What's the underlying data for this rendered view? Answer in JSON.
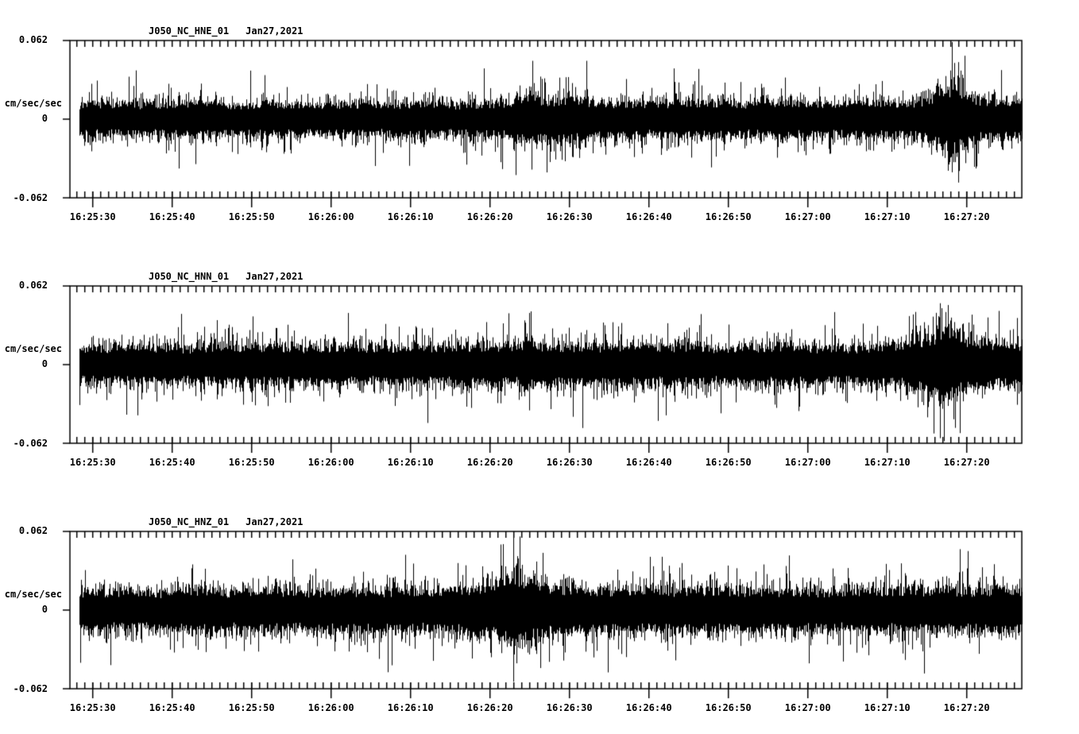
{
  "page": {
    "background": "#ffffff",
    "ink": "#000000"
  },
  "chart_data": [
    {
      "type": "line",
      "subtype": "seismogram",
      "title": "J050_NC_HNE_01",
      "date_label": "Jan27,2021",
      "ylabel": "cm/sec/sec",
      "ylim": [
        -0.062,
        0.062
      ],
      "ytick_labels": [
        "0.062",
        "0",
        "-0.062"
      ],
      "xtick_labels": [
        "16:25:30",
        "16:25:40",
        "16:25:50",
        "16:26:00",
        "16:26:10",
        "16:26:20",
        "16:26:30",
        "16:26:40",
        "16:26:50",
        "16:27:00",
        "16:27:10",
        "16:27:20"
      ],
      "x_window_start": "16:25:27",
      "x_window_end": "16:27:27",
      "minor_tick_sec": 1,
      "major_tick_sec": 10,
      "grid": false,
      "legend": "none",
      "seed": 7,
      "envelope_t_sec": [
        0,
        5,
        10,
        15,
        20,
        25,
        30,
        35,
        40,
        45,
        48,
        52,
        55,
        57,
        58,
        59,
        60,
        62,
        63,
        64,
        66,
        68,
        70,
        73,
        76,
        79,
        82,
        85,
        88,
        91,
        94,
        97,
        100,
        103,
        106,
        108,
        110,
        111,
        112,
        113,
        115,
        117,
        120
      ],
      "envelope_amp": [
        0.019,
        0.02,
        0.019,
        0.021,
        0.019,
        0.02,
        0.019,
        0.02,
        0.019,
        0.021,
        0.019,
        0.02,
        0.021,
        0.027,
        0.031,
        0.027,
        0.023,
        0.026,
        0.03,
        0.026,
        0.022,
        0.021,
        0.022,
        0.02,
        0.022,
        0.021,
        0.022,
        0.02,
        0.021,
        0.022,
        0.02,
        0.021,
        0.022,
        0.021,
        0.022,
        0.026,
        0.036,
        0.042,
        0.038,
        0.03,
        0.024,
        0.022,
        0.022
      ],
      "spikes": [
        {
          "t": 52.1,
          "amp": 0.04
        },
        {
          "t": 58.2,
          "amp": 0.046
        },
        {
          "t": 60.0,
          "amp": -0.042
        },
        {
          "t": 65.0,
          "amp": 0.046
        },
        {
          "t": 76.0,
          "amp": 0.04
        },
        {
          "t": 111.0,
          "amp": 0.057
        },
        {
          "t": 111.8,
          "amp": -0.05
        },
        {
          "t": 112.6,
          "amp": 0.05
        }
      ]
    },
    {
      "type": "line",
      "subtype": "seismogram",
      "title": "J050_NC_HNN_01",
      "date_label": "Jan27,2021",
      "ylabel": "cm/sec/sec",
      "ylim": [
        -0.062,
        0.062
      ],
      "ytick_labels": [
        "0.062",
        "0",
        "-0.062"
      ],
      "xtick_labels": [
        "16:25:30",
        "16:25:40",
        "16:25:50",
        "16:26:00",
        "16:26:10",
        "16:26:20",
        "16:26:30",
        "16:26:40",
        "16:26:50",
        "16:27:00",
        "16:27:10",
        "16:27:20"
      ],
      "x_window_start": "16:25:27",
      "x_window_end": "16:27:27",
      "minor_tick_sec": 1,
      "major_tick_sec": 10,
      "grid": false,
      "legend": "none",
      "seed": 13,
      "envelope_t_sec": [
        0,
        5,
        10,
        14,
        18,
        22,
        26,
        30,
        34,
        38,
        42,
        46,
        50,
        54,
        58,
        62,
        66,
        70,
        74,
        78,
        82,
        86,
        90,
        94,
        98,
        102,
        105,
        107,
        109,
        110,
        111,
        112,
        114,
        116,
        118,
        120
      ],
      "envelope_amp": [
        0.021,
        0.022,
        0.023,
        0.021,
        0.023,
        0.022,
        0.024,
        0.022,
        0.023,
        0.022,
        0.023,
        0.022,
        0.024,
        0.023,
        0.025,
        0.024,
        0.023,
        0.024,
        0.023,
        0.024,
        0.022,
        0.023,
        0.024,
        0.022,
        0.022,
        0.023,
        0.025,
        0.032,
        0.04,
        0.043,
        0.04,
        0.034,
        0.028,
        0.026,
        0.027,
        0.026
      ],
      "spikes": [
        {
          "t": 8.5,
          "amp": -0.04
        },
        {
          "t": 23.0,
          "amp": 0.038
        },
        {
          "t": 45.0,
          "amp": -0.046
        },
        {
          "t": 58.0,
          "amp": 0.042
        },
        {
          "t": 64.5,
          "amp": -0.05
        },
        {
          "t": 75.0,
          "amp": -0.04
        },
        {
          "t": 109.5,
          "amp": -0.058
        },
        {
          "t": 110.5,
          "amp": 0.047
        },
        {
          "t": 112.0,
          "amp": -0.054
        }
      ]
    },
    {
      "type": "line",
      "subtype": "seismogram",
      "title": "J050_NC_HNZ_01",
      "date_label": "Jan27,2021",
      "ylabel": "cm/sec/sec",
      "ylim": [
        -0.062,
        0.062
      ],
      "ytick_labels": [
        "0.062",
        "0",
        "-0.062"
      ],
      "xtick_labels": [
        "16:25:30",
        "16:25:40",
        "16:25:50",
        "16:26:00",
        "16:26:10",
        "16:26:20",
        "16:26:30",
        "16:26:40",
        "16:26:50",
        "16:27:00",
        "16:27:10",
        "16:27:20"
      ],
      "x_window_start": "16:25:27",
      "x_window_end": "16:27:27",
      "minor_tick_sec": 1,
      "major_tick_sec": 10,
      "grid": false,
      "legend": "none",
      "seed": 29,
      "envelope_t_sec": [
        0,
        5,
        10,
        15,
        20,
        25,
        30,
        35,
        40,
        44,
        48,
        52,
        54,
        55,
        56,
        57,
        58,
        59,
        61,
        63,
        66,
        70,
        74,
        78,
        82,
        86,
        90,
        94,
        98,
        102,
        106,
        110,
        114,
        117,
        120
      ],
      "envelope_amp": [
        0.023,
        0.024,
        0.023,
        0.025,
        0.024,
        0.025,
        0.024,
        0.025,
        0.025,
        0.024,
        0.026,
        0.029,
        0.034,
        0.04,
        0.045,
        0.042,
        0.037,
        0.033,
        0.029,
        0.027,
        0.026,
        0.026,
        0.025,
        0.026,
        0.025,
        0.026,
        0.025,
        0.025,
        0.024,
        0.025,
        0.026,
        0.026,
        0.025,
        0.026,
        0.025
      ],
      "spikes": [
        {
          "t": 28.0,
          "amp": 0.04
        },
        {
          "t": 40.0,
          "amp": -0.049
        },
        {
          "t": 45.7,
          "amp": -0.04
        },
        {
          "t": 54.5,
          "amp": 0.052
        },
        {
          "t": 55.8,
          "amp": 0.06
        },
        {
          "t": 56.6,
          "amp": 0.058
        },
        {
          "t": 73.0,
          "amp": 0.042
        },
        {
          "t": 93.0,
          "amp": -0.042
        },
        {
          "t": 107.5,
          "amp": -0.05
        },
        {
          "t": 112.0,
          "amp": 0.048
        }
      ]
    }
  ]
}
